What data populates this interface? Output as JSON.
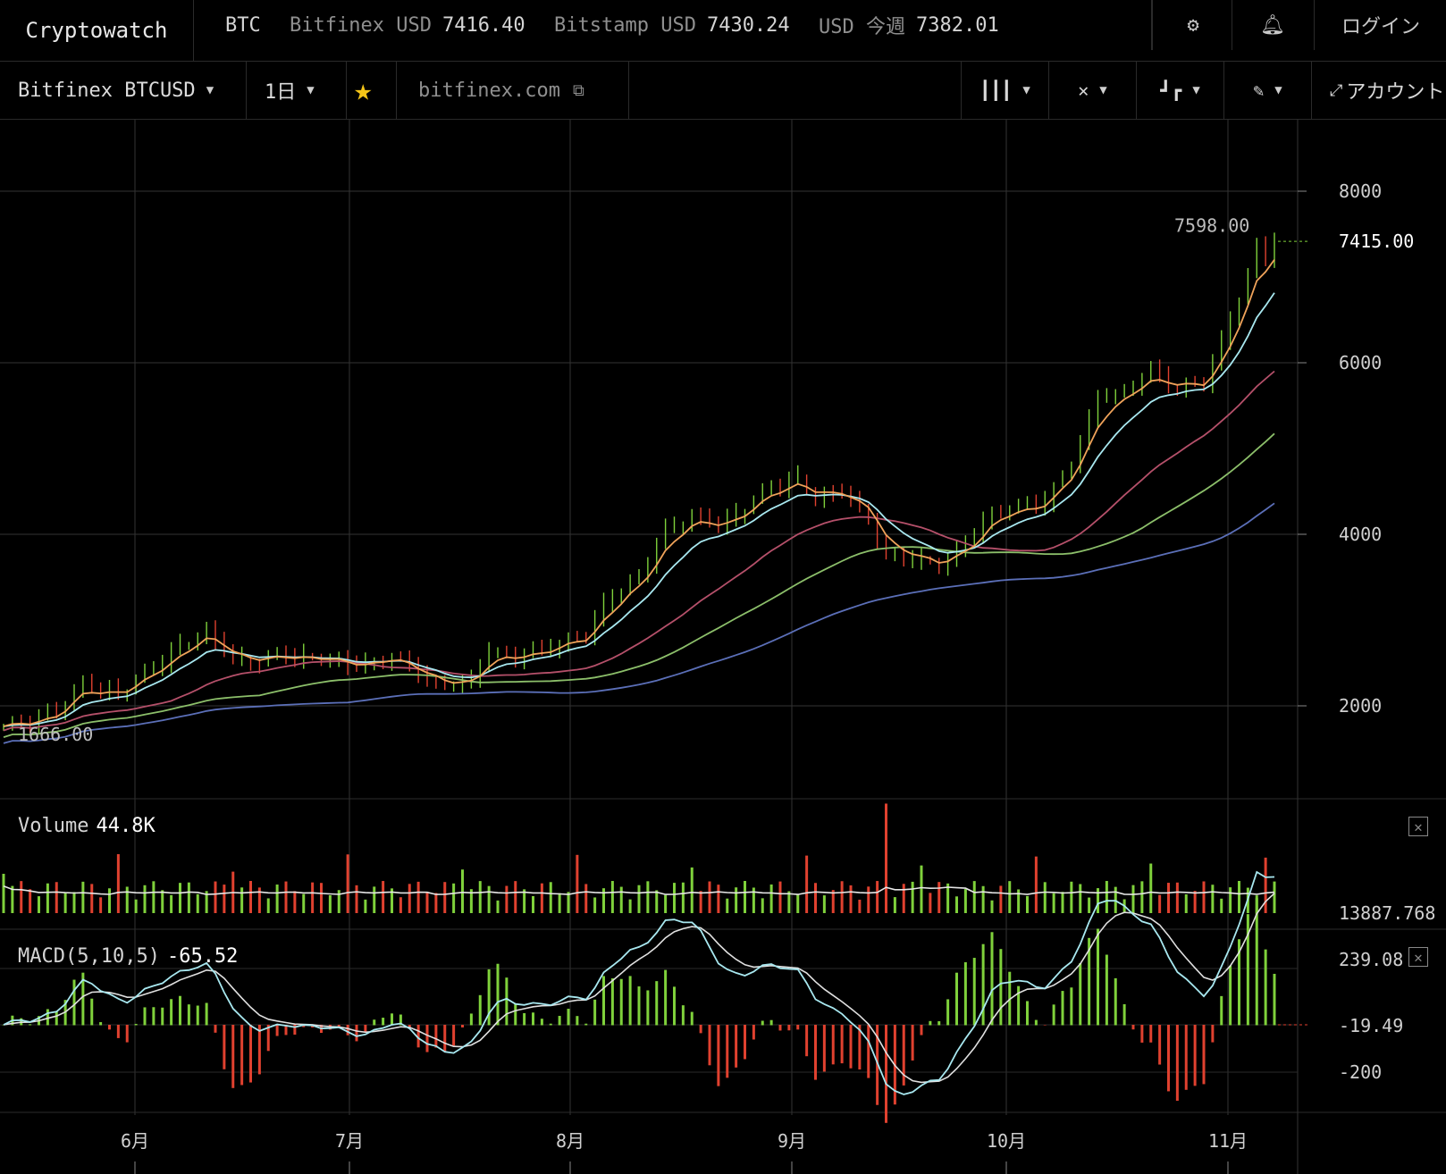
{
  "header": {
    "brand": "Cryptowatch",
    "ticker": [
      {
        "label": "BTC",
        "value": ""
      },
      {
        "label": "Bitfinex USD",
        "value": "7416.40"
      },
      {
        "label": "Bitstamp USD",
        "value": "7430.24"
      },
      {
        "label": "USD 今週",
        "value": "7382.01"
      }
    ],
    "login_label": "ログイン",
    "settings_icon": "gear-icon",
    "alerts_icon": "bell-icon"
  },
  "toolbar": {
    "market": "Bitfinex BTCUSD",
    "interval": "1日",
    "favorite_icon": "star-icon",
    "exchange_link": "bitfinex.com",
    "chart_type_icon": "candlestick-icon",
    "indicators_icon": "crossover-icon",
    "studies_icon": "step-chart-icon",
    "draw_icon": "pencil-icon",
    "account_label": "アカウント"
  },
  "chart_data": {
    "type": "line",
    "months": [
      "6月",
      "7月",
      "8月",
      "9月",
      "10月",
      "11月"
    ],
    "price_axis": {
      "ticks": [
        "8000",
        "6000",
        "4000",
        "2000"
      ],
      "last_price": "7415.00",
      "high_label": "7598.00",
      "low_label": "1666.00"
    },
    "price_range": [
      1250,
      8650
    ],
    "price_anchors": [
      {
        "x": 0,
        "y": 1760
      },
      {
        "x": 3,
        "y": 1800
      },
      {
        "x": 6,
        "y": 1950
      },
      {
        "x": 9,
        "y": 2250
      },
      {
        "x": 11,
        "y": 2150
      },
      {
        "x": 14,
        "y": 2200
      },
      {
        "x": 17,
        "y": 2450
      },
      {
        "x": 20,
        "y": 2700
      },
      {
        "x": 23,
        "y": 2850
      },
      {
        "x": 26,
        "y": 2550
      },
      {
        "x": 29,
        "y": 2500
      },
      {
        "x": 32,
        "y": 2600
      },
      {
        "x": 35,
        "y": 2550
      },
      {
        "x": 38,
        "y": 2500
      },
      {
        "x": 41,
        "y": 2480
      },
      {
        "x": 44,
        "y": 2550
      },
      {
        "x": 47,
        "y": 2400
      },
      {
        "x": 50,
        "y": 2200
      },
      {
        "x": 53,
        "y": 2300
      },
      {
        "x": 55,
        "y": 2650
      },
      {
        "x": 58,
        "y": 2550
      },
      {
        "x": 62,
        "y": 2700
      },
      {
        "x": 66,
        "y": 2800
      },
      {
        "x": 68,
        "y": 3200
      },
      {
        "x": 72,
        "y": 3500
      },
      {
        "x": 75,
        "y": 4050
      },
      {
        "x": 78,
        "y": 4200
      },
      {
        "x": 81,
        "y": 4100
      },
      {
        "x": 84,
        "y": 4300
      },
      {
        "x": 87,
        "y": 4550
      },
      {
        "x": 90,
        "y": 4650
      },
      {
        "x": 92,
        "y": 4400
      },
      {
        "x": 95,
        "y": 4500
      },
      {
        "x": 98,
        "y": 4200
      },
      {
        "x": 100,
        "y": 3700
      },
      {
        "x": 103,
        "y": 3750
      },
      {
        "x": 106,
        "y": 3600
      },
      {
        "x": 109,
        "y": 3900
      },
      {
        "x": 112,
        "y": 4250
      },
      {
        "x": 115,
        "y": 4300
      },
      {
        "x": 118,
        "y": 4400
      },
      {
        "x": 121,
        "y": 4800
      },
      {
        "x": 124,
        "y": 5600
      },
      {
        "x": 127,
        "y": 5650
      },
      {
        "x": 130,
        "y": 5900
      },
      {
        "x": 133,
        "y": 5700
      },
      {
        "x": 136,
        "y": 5750
      },
      {
        "x": 139,
        "y": 6500
      },
      {
        "x": 141,
        "y": 7000
      },
      {
        "x": 142,
        "y": 7350
      },
      {
        "x": 143,
        "y": 7250
      },
      {
        "x": 144,
        "y": 7415
      }
    ],
    "volume": {
      "title": "Volume",
      "value": "44.8K",
      "axis_label": "13887.768"
    },
    "macd": {
      "title": "MACD(5,10,5)",
      "value": "-65.52",
      "axis_labels": [
        "239.08",
        "-19.49",
        "-200"
      ]
    },
    "colors": {
      "up": "#7fd13b",
      "down": "#e0412f",
      "ema_fast": "#f0a35a",
      "ema_slow": "#a8e8f0",
      "ma_red": "#b5506a",
      "ma_green": "#8cbf6a",
      "ma_blue": "#5b6fb8"
    }
  }
}
